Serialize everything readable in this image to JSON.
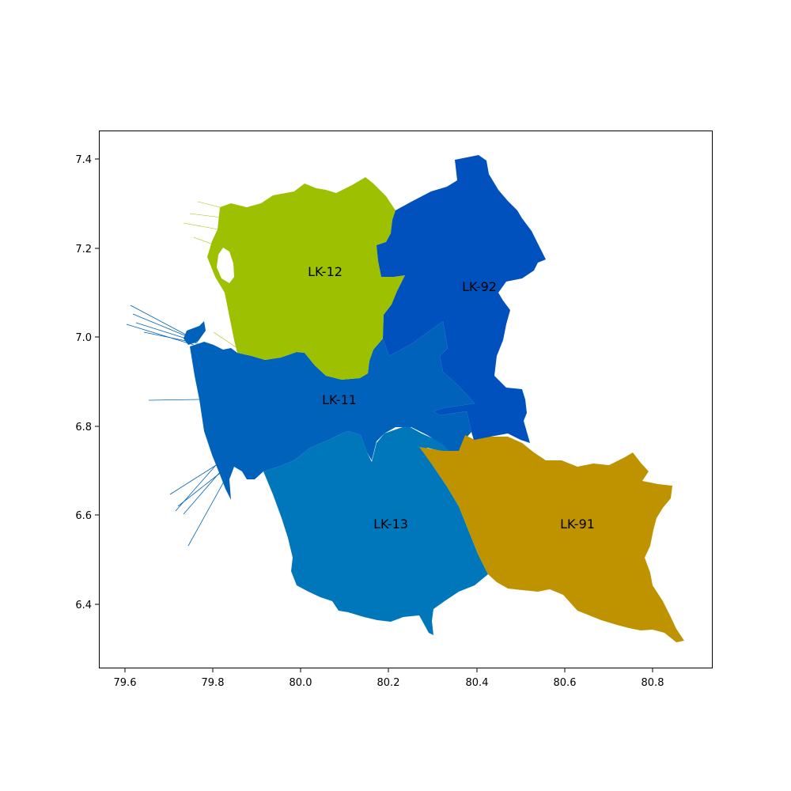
{
  "map": {
    "x_ticks": [
      "79.6",
      "79.8",
      "80.0",
      "80.2",
      "80.4",
      "80.6",
      "80.8"
    ],
    "y_ticks": [
      "7.4",
      "7.2",
      "7.0",
      "6.8",
      "6.6",
      "6.4"
    ],
    "regions": [
      {
        "code": "LK-12",
        "color": "#9dc000"
      },
      {
        "code": "LK-92",
        "color": "#0051bd"
      },
      {
        "code": "LK-11",
        "color": "#0062ba"
      },
      {
        "code": "LK-13",
        "color": "#0077bb"
      },
      {
        "code": "LK-91",
        "color": "#bf9200"
      }
    ]
  }
}
